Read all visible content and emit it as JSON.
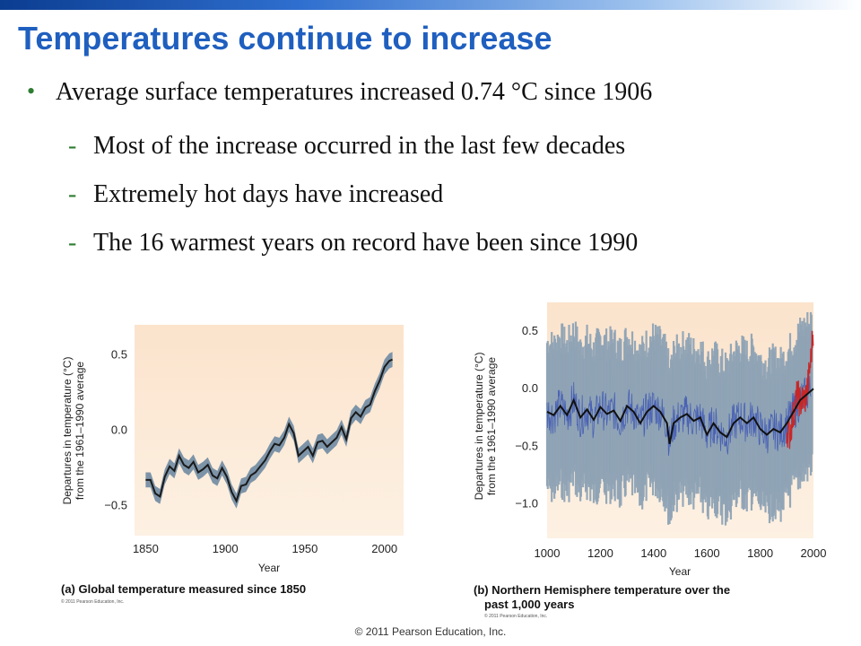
{
  "slide": {
    "title": "Temperatures continue to increase",
    "bullet": "Average surface temperatures increased 0.74 °C since 1906",
    "sub_bullets": [
      "Most of the increase occurred in the last few decades",
      "Extremely hot days have increased",
      "The 16 warmest years on record have been since 1990"
    ],
    "footer": "© 2011 Pearson Education, Inc."
  },
  "chart_data": [
    {
      "type": "line",
      "title": "",
      "caption": "(a) Global temperature measured since 1850",
      "copyright": "© 2011 Pearson Education, Inc.",
      "xlabel": "Year",
      "ylabel_line1": "Departures in temperature (°C)",
      "ylabel_line2": "from the 1961–1990 average",
      "xlim": [
        1843,
        2012
      ],
      "ylim": [
        -0.7,
        0.7
      ],
      "xticks": [
        1850,
        1900,
        1950,
        2000
      ],
      "yticks": [
        0.5,
        0.0,
        -0.5
      ],
      "ytick_labels": [
        "0.5",
        "0.0",
        "−0.5"
      ],
      "band_halfwidth": 0.05,
      "series": [
        {
          "x": [
            1850,
            1853,
            1856,
            1859,
            1862,
            1865,
            1868,
            1871,
            1874,
            1877,
            1880,
            1883,
            1886,
            1889,
            1892,
            1895,
            1898,
            1901,
            1904,
            1907,
            1910,
            1913,
            1916,
            1919,
            1922,
            1925,
            1928,
            1931,
            1934,
            1937,
            1940,
            1943,
            1946,
            1949,
            1952,
            1955,
            1958,
            1961,
            1964,
            1967,
            1970,
            1973,
            1976,
            1979,
            1982,
            1985,
            1988,
            1991,
            1994,
            1997,
            2000,
            2003,
            2005
          ],
          "y": [
            -0.33,
            -0.33,
            -0.42,
            -0.44,
            -0.31,
            -0.24,
            -0.27,
            -0.17,
            -0.23,
            -0.25,
            -0.21,
            -0.28,
            -0.26,
            -0.23,
            -0.3,
            -0.32,
            -0.25,
            -0.31,
            -0.41,
            -0.47,
            -0.37,
            -0.36,
            -0.3,
            -0.28,
            -0.24,
            -0.2,
            -0.14,
            -0.09,
            -0.1,
            -0.05,
            0.04,
            -0.02,
            -0.17,
            -0.14,
            -0.11,
            -0.17,
            -0.08,
            -0.07,
            -0.11,
            -0.08,
            -0.05,
            0.02,
            -0.06,
            0.08,
            0.12,
            0.09,
            0.15,
            0.17,
            0.26,
            0.33,
            0.42,
            0.46,
            0.47
          ]
        }
      ]
    },
    {
      "type": "line",
      "title": "",
      "caption_line1": "(b) Northern Hemisphere temperature over the",
      "caption_line2": "past 1,000 years",
      "copyright": "© 2011 Pearson Education, Inc.",
      "xlabel": "Year",
      "ylabel_line1": "Departures in temperature (°C)",
      "ylabel_line2": "from the 1961–1990 average",
      "xlim": [
        1000,
        2000
      ],
      "ylim": [
        -1.3,
        0.75
      ],
      "xticks": [
        1000,
        1200,
        1400,
        1600,
        1800,
        2000
      ],
      "yticks": [
        0.5,
        0.0,
        -0.5,
        -1.0
      ],
      "ytick_labels": [
        "0.5",
        "0.0",
        "−0.5",
        "−1.0"
      ],
      "colors": {
        "uncertainty": "#8fa3b5",
        "proxy": "#4a62b4",
        "smoothed": "#111111",
        "instrumental": "#c62828"
      },
      "series": [
        {
          "name": "smoothed",
          "x": [
            1000,
            1025,
            1050,
            1075,
            1100,
            1125,
            1150,
            1175,
            1200,
            1225,
            1250,
            1275,
            1300,
            1325,
            1350,
            1375,
            1400,
            1425,
            1450,
            1460,
            1475,
            1500,
            1525,
            1550,
            1575,
            1600,
            1625,
            1650,
            1675,
            1700,
            1725,
            1750,
            1775,
            1800,
            1825,
            1850,
            1875,
            1900,
            1925,
            1950,
            1975,
            2000
          ],
          "y": [
            -0.2,
            -0.23,
            -0.15,
            -0.23,
            -0.1,
            -0.25,
            -0.18,
            -0.27,
            -0.16,
            -0.22,
            -0.19,
            -0.28,
            -0.15,
            -0.2,
            -0.3,
            -0.2,
            -0.15,
            -0.2,
            -0.3,
            -0.48,
            -0.3,
            -0.25,
            -0.22,
            -0.28,
            -0.25,
            -0.4,
            -0.3,
            -0.38,
            -0.42,
            -0.3,
            -0.25,
            -0.3,
            -0.25,
            -0.35,
            -0.4,
            -0.35,
            -0.38,
            -0.3,
            -0.2,
            -0.1,
            -0.05,
            0.0
          ]
        },
        {
          "name": "instrumental",
          "x": [
            1900,
            1910,
            1920,
            1930,
            1940,
            1950,
            1960,
            1970,
            1980,
            1990,
            2000
          ],
          "y": [
            -0.35,
            -0.4,
            -0.28,
            -0.15,
            -0.05,
            -0.12,
            -0.1,
            -0.08,
            0.05,
            0.25,
            0.55
          ]
        }
      ]
    }
  ]
}
